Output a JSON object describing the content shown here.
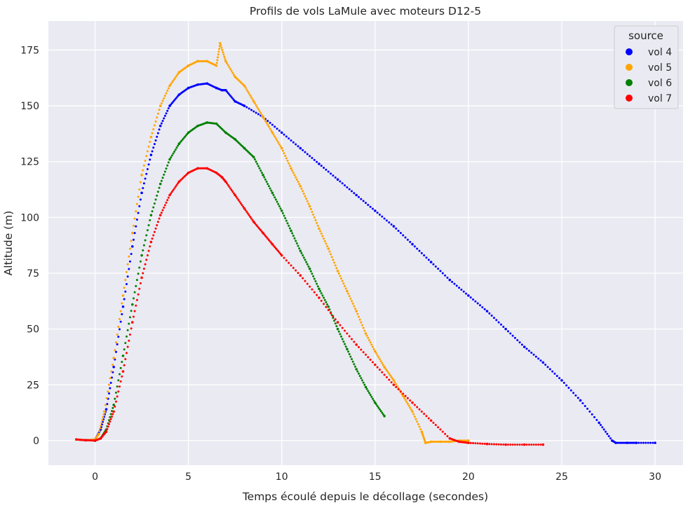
{
  "chart_data": {
    "type": "scatter",
    "title": "Profils de vols LaMule avec moteurs D12-5",
    "xlabel": "Temps écoulé depuis le décollage (secondes)",
    "ylabel": "Altitude (m)",
    "xlim": [
      -2.5,
      31.5
    ],
    "ylim": [
      -11,
      188
    ],
    "xticks": [
      0,
      5,
      10,
      15,
      20,
      25,
      30
    ],
    "yticks": [
      0,
      25,
      50,
      75,
      100,
      125,
      150,
      175
    ],
    "grid": true,
    "legend": {
      "title": "source",
      "placement": "top-right",
      "entries": [
        "vol 4",
        "vol 5",
        "vol 6",
        "vol 7"
      ]
    },
    "series": [
      {
        "name": "vol 4",
        "color": "#0000ff",
        "points": [
          [
            -1.0,
            0.5
          ],
          [
            -0.5,
            0.2
          ],
          [
            0.0,
            0.5
          ],
          [
            0.3,
            5
          ],
          [
            0.6,
            14
          ],
          [
            1.0,
            33
          ],
          [
            1.5,
            60
          ],
          [
            2.0,
            87
          ],
          [
            2.5,
            111
          ],
          [
            3.0,
            128
          ],
          [
            3.5,
            141
          ],
          [
            4.0,
            150
          ],
          [
            4.5,
            155
          ],
          [
            5.0,
            158
          ],
          [
            5.5,
            159.5
          ],
          [
            6.0,
            160
          ],
          [
            6.5,
            158
          ],
          [
            6.8,
            157
          ],
          [
            7.0,
            157
          ],
          [
            7.5,
            152
          ],
          [
            8.0,
            150
          ],
          [
            9.0,
            145
          ],
          [
            10.0,
            138
          ],
          [
            11.0,
            131
          ],
          [
            12.0,
            124
          ],
          [
            13.0,
            117
          ],
          [
            14.0,
            110
          ],
          [
            15.0,
            103
          ],
          [
            16.0,
            96
          ],
          [
            17.0,
            88
          ],
          [
            18.0,
            80
          ],
          [
            19.0,
            72
          ],
          [
            20.0,
            65
          ],
          [
            21.0,
            58
          ],
          [
            22.0,
            50
          ],
          [
            23.0,
            42
          ],
          [
            24.0,
            35
          ],
          [
            25.0,
            27
          ],
          [
            26.0,
            18
          ],
          [
            27.0,
            8
          ],
          [
            27.7,
            0
          ],
          [
            27.9,
            -1
          ],
          [
            28.5,
            -1
          ],
          [
            29.0,
            -1
          ],
          [
            30.0,
            -1
          ]
        ]
      },
      {
        "name": "vol 5",
        "color": "#ffa500",
        "points": [
          [
            -1.0,
            0.5
          ],
          [
            -0.5,
            0.2
          ],
          [
            0.0,
            0.5
          ],
          [
            0.2,
            3
          ],
          [
            0.5,
            13
          ],
          [
            1.0,
            37
          ],
          [
            1.5,
            65
          ],
          [
            2.0,
            93
          ],
          [
            2.5,
            119
          ],
          [
            3.0,
            136
          ],
          [
            3.5,
            150
          ],
          [
            4.0,
            159
          ],
          [
            4.5,
            165
          ],
          [
            5.0,
            168
          ],
          [
            5.5,
            170
          ],
          [
            6.0,
            170
          ],
          [
            6.5,
            168
          ],
          [
            6.7,
            178
          ],
          [
            7.0,
            170
          ],
          [
            7.5,
            163
          ],
          [
            8.0,
            159
          ],
          [
            8.5,
            152
          ],
          [
            9.0,
            145
          ],
          [
            9.5,
            138
          ],
          [
            10.0,
            131
          ],
          [
            10.5,
            122
          ],
          [
            11.0,
            114
          ],
          [
            11.5,
            105
          ],
          [
            12.0,
            95
          ],
          [
            12.5,
            86
          ],
          [
            13.0,
            76
          ],
          [
            13.5,
            67
          ],
          [
            14.0,
            58
          ],
          [
            14.5,
            48
          ],
          [
            15.0,
            40
          ],
          [
            15.5,
            33
          ],
          [
            16.0,
            27
          ],
          [
            16.5,
            20
          ],
          [
            17.0,
            13
          ],
          [
            17.5,
            4
          ],
          [
            17.7,
            -1
          ],
          [
            18.0,
            -0.5
          ],
          [
            18.5,
            -0.5
          ],
          [
            19.0,
            -0.5
          ],
          [
            19.5,
            0
          ],
          [
            20.0,
            0
          ]
        ]
      },
      {
        "name": "vol 6",
        "color": "#008000",
        "points": [
          [
            0.0,
            0
          ],
          [
            0.3,
            1
          ],
          [
            0.6,
            5
          ],
          [
            1.0,
            16
          ],
          [
            1.5,
            38
          ],
          [
            2.0,
            61
          ],
          [
            2.5,
            83
          ],
          [
            3.0,
            101
          ],
          [
            3.5,
            115
          ],
          [
            4.0,
            126
          ],
          [
            4.5,
            133
          ],
          [
            5.0,
            138
          ],
          [
            5.5,
            141
          ],
          [
            6.0,
            142.5
          ],
          [
            6.5,
            142
          ],
          [
            7.0,
            138
          ],
          [
            7.5,
            135
          ],
          [
            8.0,
            131
          ],
          [
            8.5,
            127
          ],
          [
            9.0,
            119
          ],
          [
            9.5,
            111
          ],
          [
            10.0,
            103
          ],
          [
            10.5,
            94
          ],
          [
            11.0,
            85
          ],
          [
            11.5,
            77
          ],
          [
            12.0,
            68
          ],
          [
            12.5,
            60
          ],
          [
            13.0,
            50
          ],
          [
            13.5,
            41
          ],
          [
            14.0,
            32
          ],
          [
            14.5,
            24
          ],
          [
            15.0,
            17
          ],
          [
            15.5,
            11
          ]
        ]
      },
      {
        "name": "vol 7",
        "color": "#ff0000",
        "points": [
          [
            -1.0,
            0.5
          ],
          [
            -0.5,
            0.2
          ],
          [
            0.0,
            0
          ],
          [
            0.3,
            1
          ],
          [
            0.6,
            4
          ],
          [
            1.0,
            13
          ],
          [
            1.5,
            31
          ],
          [
            2.0,
            53
          ],
          [
            2.5,
            73
          ],
          [
            3.0,
            89
          ],
          [
            3.5,
            101
          ],
          [
            4.0,
            110
          ],
          [
            4.5,
            116
          ],
          [
            5.0,
            120
          ],
          [
            5.5,
            122
          ],
          [
            6.0,
            122
          ],
          [
            6.5,
            120
          ],
          [
            6.8,
            118
          ],
          [
            7.0,
            116
          ],
          [
            7.5,
            110
          ],
          [
            8.0,
            104
          ],
          [
            8.5,
            98
          ],
          [
            9.0,
            93
          ],
          [
            9.5,
            88
          ],
          [
            10.0,
            83
          ],
          [
            11.0,
            74
          ],
          [
            12.0,
            64
          ],
          [
            13.0,
            53
          ],
          [
            14.0,
            43
          ],
          [
            15.0,
            34
          ],
          [
            16.0,
            25
          ],
          [
            17.0,
            17
          ],
          [
            18.0,
            9
          ],
          [
            19.0,
            1
          ],
          [
            19.5,
            -0.5
          ],
          [
            20.0,
            -1
          ],
          [
            21.0,
            -1.5
          ],
          [
            22.0,
            -1.8
          ],
          [
            23.0,
            -1.8
          ],
          [
            24.0,
            -1.8
          ]
        ]
      }
    ]
  }
}
